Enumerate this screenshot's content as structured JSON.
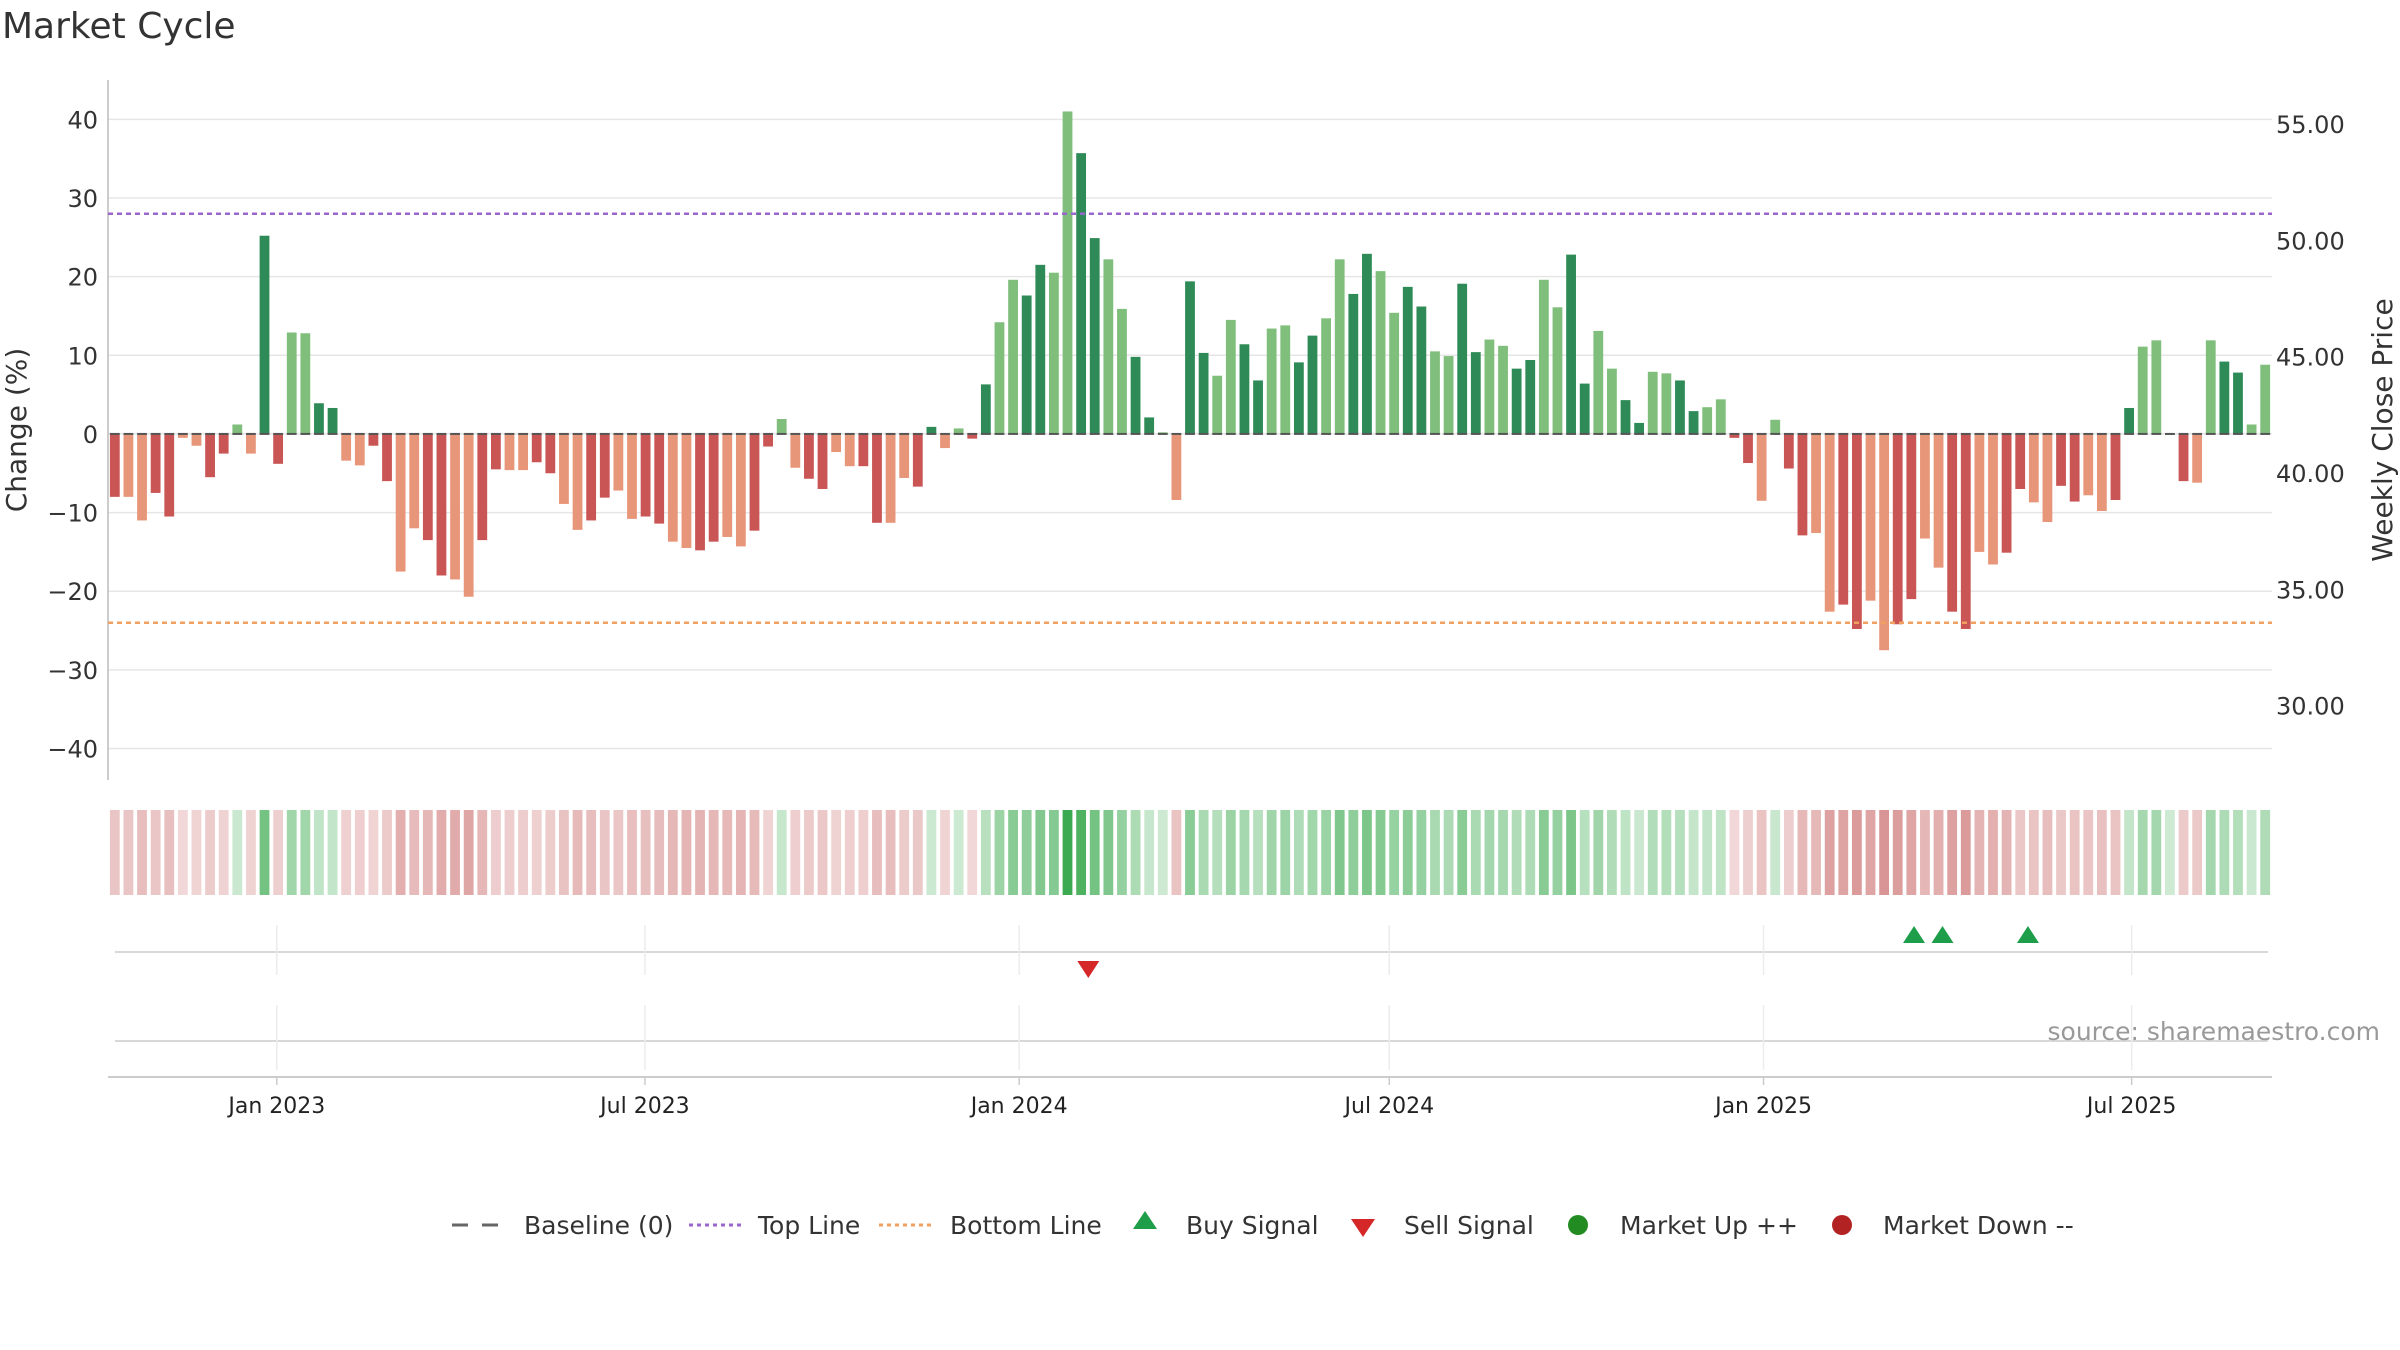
{
  "chart_data": {
    "type": "bar",
    "title": "Market Cycle",
    "ylabel": "Change (%)",
    "y2label": "Weekly Close Price",
    "ylim": [
      -44,
      45
    ],
    "y2lim": [
      26.8,
      56.9
    ],
    "yticks": [
      40,
      30,
      20,
      10,
      0,
      -10,
      -20,
      -30,
      -40
    ],
    "ytick_labels": [
      "40",
      "30",
      "20",
      "10",
      "0",
      "−10",
      "−20",
      "−30",
      "−40"
    ],
    "y2ticks": [
      55.0,
      50.0,
      45.0,
      40.0,
      35.0,
      30.0
    ],
    "y2tick_labels": [
      "55.00",
      "50.00",
      "45.00",
      "40.00",
      "35.00",
      "30.00"
    ],
    "x_start": "2022-10-10",
    "x_end": "2025-09-08",
    "xticks": [
      {
        "date": "2023-01-01",
        "label": "Jan 2023"
      },
      {
        "date": "2023-07-01",
        "label": "Jul 2023"
      },
      {
        "date": "2024-01-01",
        "label": "Jan 2024"
      },
      {
        "date": "2024-07-01",
        "label": "Jul 2024"
      },
      {
        "date": "2025-01-01",
        "label": "Jan 2025"
      },
      {
        "date": "2025-07-01",
        "label": "Jul 2025"
      }
    ],
    "top_line": 28,
    "bottom_line": -24,
    "baseline": 0,
    "values": [
      -8,
      -8,
      -11,
      -7.5,
      -10.5,
      -0.5,
      -1.5,
      -5.5,
      -2.5,
      1.2,
      -2.5,
      25.2,
      -3.8,
      12.9,
      12.8,
      3.9,
      3.3,
      -3.4,
      -4,
      -1.5,
      -6,
      -17.5,
      -12,
      -13.5,
      -18,
      -18.5,
      -20.7,
      -13.5,
      -4.5,
      -4.6,
      -4.6,
      -3.6,
      -5,
      -8.9,
      -12.2,
      -11,
      -8.1,
      -7.2,
      -10.8,
      -10.5,
      -11.4,
      -13.7,
      -14.5,
      -14.8,
      -13.7,
      -13.1,
      -14.3,
      -12.3,
      -1.6,
      1.9,
      -4.3,
      -5.7,
      -7,
      -2.3,
      -4.1,
      -4.1,
      -11.3,
      -11.3,
      -5.6,
      -6.7,
      0.9,
      -1.8,
      0.7,
      -0.6,
      6.3,
      14.2,
      19.6,
      17.6,
      21.5,
      20.5,
      41,
      35.7,
      24.9,
      22.2,
      15.9,
      9.8,
      2.1,
      0.2,
      -8.4,
      19.4,
      10.3,
      7.4,
      14.5,
      11.4,
      6.8,
      13.4,
      13.8,
      9.1,
      12.5,
      14.7,
      22.2,
      17.8,
      22.9,
      20.7,
      15.4,
      18.7,
      16.2,
      10.5,
      9.9,
      19.1,
      10.4,
      12,
      11.2,
      8.3,
      9.4,
      19.6,
      16.1,
      22.8,
      6.4,
      13.1,
      8.3,
      4.3,
      1.4,
      7.9,
      7.7,
      6.8,
      2.9,
      3.4,
      4.4,
      -0.5,
      -3.7,
      -8.5,
      1.8,
      -4.4,
      -12.9,
      -12.6,
      -22.6,
      -21.7,
      -24.8,
      -21.2,
      -27.5,
      -24.2,
      -21,
      -13.3,
      -17,
      -22.6,
      -24.8,
      -15,
      -16.6,
      -15.1,
      -7,
      -8.7,
      -11.2,
      -6.6,
      -8.6,
      -7.8,
      -9.8,
      -8.4,
      3.3,
      11.1,
      11.9,
      0,
      -6,
      -6.2,
      11.9,
      9.2,
      7.8,
      1.2,
      8.8
    ],
    "buy_signals": [
      "2025-03-16",
      "2025-03-30",
      "2025-05-11"
    ],
    "sell_signals": [
      "2024-02-04"
    ],
    "colors": {
      "strong_up": "#2e8b57",
      "weak_up": "#7fbf7b",
      "strong_down": "#c95555",
      "weak_down": "#e8967a",
      "top_line": "#9966cc",
      "bottom_line": "#f0a060",
      "baseline": "#666666",
      "buy": "#1e9e4a",
      "sell": "#d62728",
      "market_up": "#228b22",
      "market_down": "#b22222"
    },
    "legend": [
      {
        "key": "baseline",
        "label": "Baseline (0)",
        "marker": "dash"
      },
      {
        "key": "top",
        "label": "Top Line",
        "marker": "dotted-purple"
      },
      {
        "key": "bottom",
        "label": "Bottom Line",
        "marker": "dotted-orange"
      },
      {
        "key": "buy",
        "label": "Buy Signal",
        "marker": "triangle-up"
      },
      {
        "key": "sell",
        "label": "Sell Signal",
        "marker": "triangle-down"
      },
      {
        "key": "up",
        "label": "Market Up ++",
        "marker": "circle-green"
      },
      {
        "key": "down",
        "label": "Market Down --",
        "marker": "circle-red"
      }
    ],
    "legend_position": "bottom-center",
    "grid": true,
    "source": "source: sharemaestro.com"
  }
}
